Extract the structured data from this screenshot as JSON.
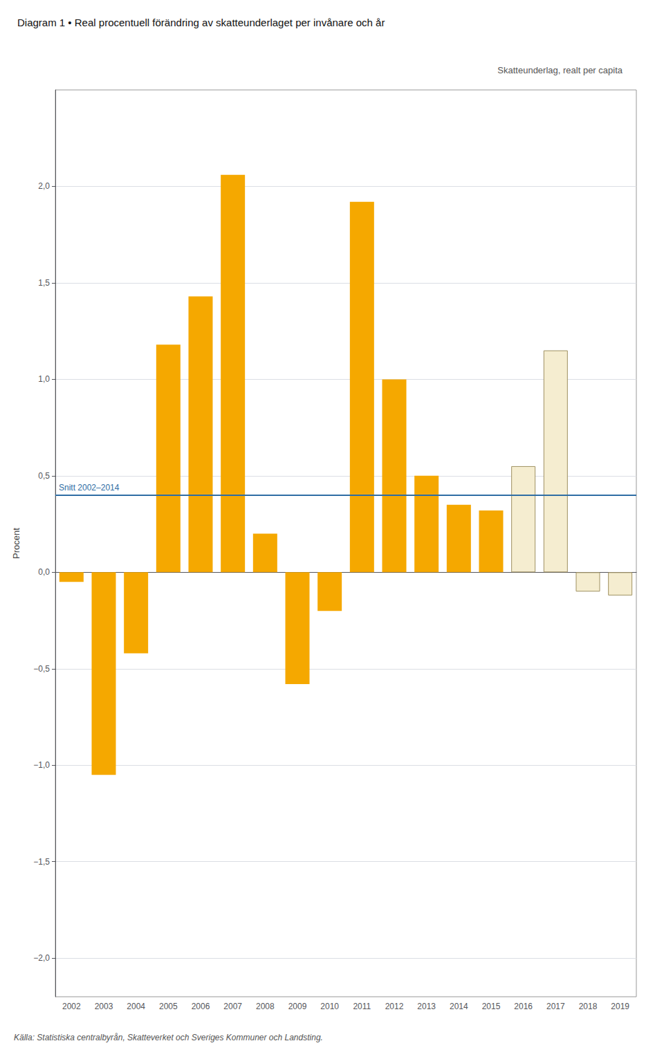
{
  "chart_data": {
    "type": "bar",
    "title": "Diagram 1 • Real procentuell förändring av skatteunderlaget per invånare och år",
    "ylabel": "Procent",
    "categories": [
      "2002",
      "2003",
      "2004",
      "2005",
      "2006",
      "2007",
      "2008",
      "2009",
      "2010",
      "2011",
      "2012",
      "2013",
      "2014",
      "2015",
      "2016",
      "2017",
      "2018",
      "2019"
    ],
    "values": [
      -0.05,
      -1.05,
      -0.42,
      1.18,
      1.43,
      2.06,
      0.2,
      -0.58,
      -0.2,
      1.92,
      1.0,
      0.5,
      0.35,
      0.32,
      0.55,
      1.15,
      -0.1,
      -0.12
    ],
    "colors": [
      "#F5A800",
      "#F5A800",
      "#F5A800",
      "#F5A800",
      "#F5A800",
      "#F5A800",
      "#F5A800",
      "#F5A800",
      "#F5A800",
      "#F5A800",
      "#F5A800",
      "#F5A800",
      "#F5A800",
      "#F5A800",
      "#F5EDD0",
      "#F5EDD0",
      "#F5EDD0",
      "#F5EDD0"
    ],
    "ylim": [
      -2.2,
      2.5
    ],
    "yticks": [
      {
        "value": -2.0,
        "label": "−2,0"
      },
      {
        "value": -1.5,
        "label": "−1,5"
      },
      {
        "value": -1.0,
        "label": "−1,0"
      },
      {
        "value": -0.5,
        "label": "−0,5"
      },
      {
        "value": 0.0,
        "label": "0,0"
      },
      {
        "value": 0.5,
        "label": "0,5"
      },
      {
        "value": 1.0,
        "label": "1,0"
      },
      {
        "value": 1.5,
        "label": "1,5"
      },
      {
        "value": 2.0,
        "label": "2,0"
      }
    ],
    "grid": true,
    "annotations": [
      {
        "type": "hline",
        "y": 0.4,
        "text": "Snitt 2002–2014",
        "color": "#2E6DA4"
      },
      {
        "type": "text",
        "text": "Skatteunderlag, realt per capita"
      }
    ],
    "source": "Källa: Statistiska centralbyrån, Skatteverket och Sveriges Kommuner och Landsting."
  }
}
